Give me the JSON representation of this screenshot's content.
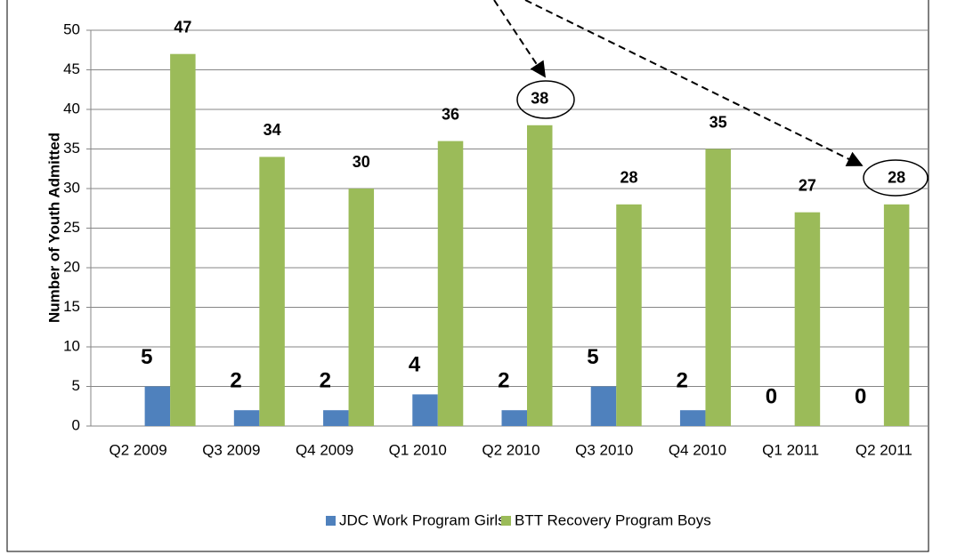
{
  "chart_data": {
    "type": "bar",
    "ylabel": "Number of Youth Admitted",
    "categories": [
      "Q2 2009",
      "Q3 2009",
      "Q4 2009",
      "Q1 2010",
      "Q2 2010",
      "Q3 2010",
      "Q4 2010",
      "Q1 2011",
      "Q2 2011"
    ],
    "series": [
      {
        "name": "JDC Work Program Girls",
        "color": "#4f81bd",
        "values": [
          5,
          2,
          2,
          4,
          2,
          5,
          2,
          0,
          0
        ]
      },
      {
        "name": "BTT Recovery Program Boys",
        "color": "#9bbb59",
        "values": [
          47,
          34,
          30,
          36,
          38,
          28,
          35,
          27,
          28
        ]
      }
    ],
    "ylim": [
      0,
      50
    ],
    "yticks": [
      0,
      5,
      10,
      15,
      20,
      25,
      30,
      35,
      40,
      45,
      50
    ],
    "grid": true,
    "legend": "bottom"
  }
}
